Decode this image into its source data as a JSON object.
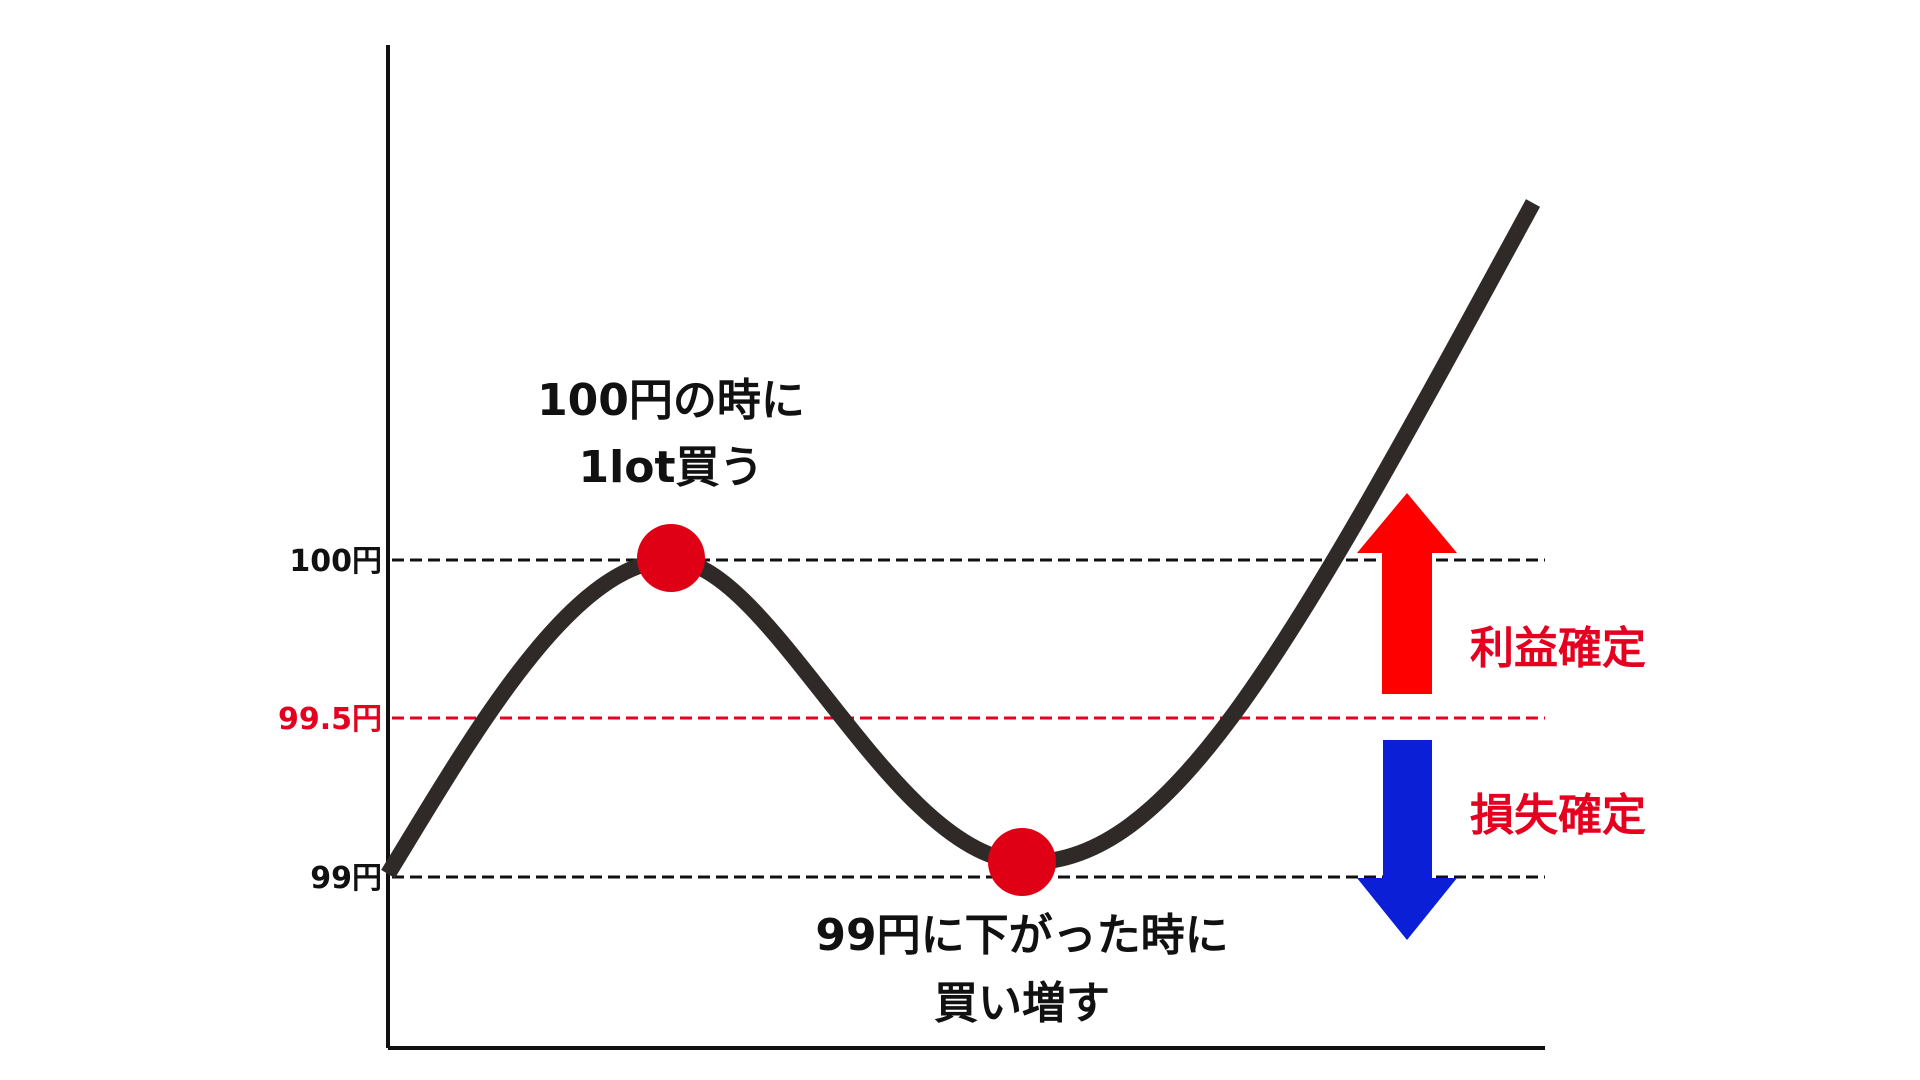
{
  "levels": [
    {
      "label": "100円",
      "value": 100,
      "color": "#111111"
    },
    {
      "label": "99.5円",
      "value": 99.5,
      "color": "#e5001f"
    },
    {
      "label": "99円",
      "value": 99,
      "color": "#111111"
    }
  ],
  "annotations": {
    "buy_first_line1": "100円の時に",
    "buy_first_line2": "1lot買う",
    "buy_more_line1": "99円に下がった時に",
    "buy_more_line2": "買い増す"
  },
  "arrows": {
    "profit_label": "利益確定",
    "loss_label": "損失確定",
    "profit_color": "#ff0000",
    "loss_color": "#0a1fd6"
  },
  "colors": {
    "curve": "#2f2a28",
    "marker": "#e00016",
    "axis": "#111111",
    "label_red": "#e5001f"
  }
}
